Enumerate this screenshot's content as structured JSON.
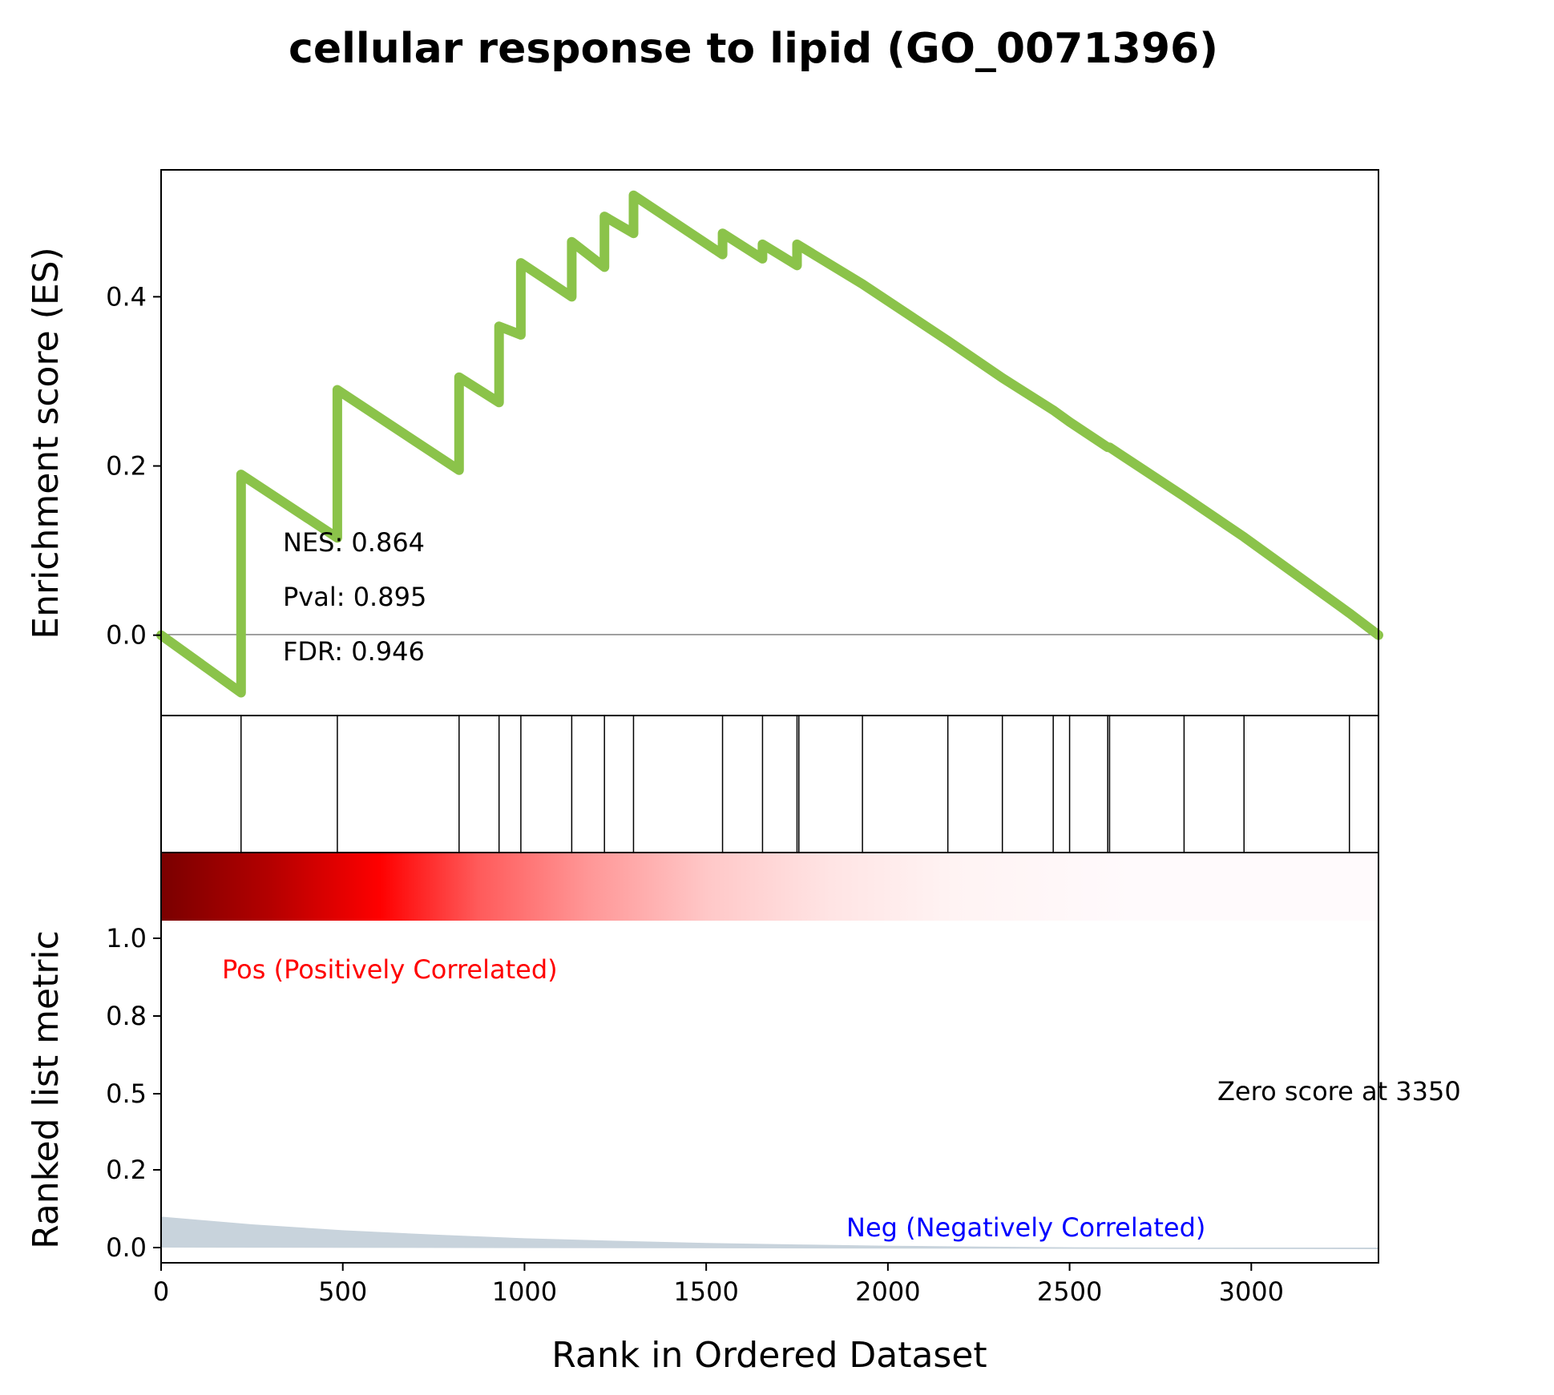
{
  "chart_data": {
    "type": "line",
    "title": "cellular response to lipid (GO_0071396)",
    "xlabel": "Rank in Ordered Dataset",
    "xlim": [
      0,
      3350
    ],
    "x_ticks": [
      "0",
      "500",
      "1000",
      "1500",
      "2000",
      "2500",
      "3000"
    ],
    "es_panel": {
      "ylabel": "Enrichment score (ES)",
      "ylim": [
        -0.095,
        0.55
      ],
      "y_ticks": [
        "0.0",
        "0.2",
        "0.4"
      ],
      "line_color": "#8bc34a",
      "series": [
        {
          "x": [
            0,
            220,
            220,
            485,
            485,
            820,
            820,
            930,
            930,
            990,
            990,
            1130,
            1130,
            1220,
            1220,
            1300,
            1300,
            1545,
            1545,
            1655,
            1655,
            1750,
            1750,
            1930,
            2165,
            2315,
            2455,
            2500,
            2605,
            2610,
            2815,
            2980,
            3270,
            3350
          ],
          "y": [
            0.0,
            -0.068,
            0.19,
            0.115,
            0.29,
            0.195,
            0.305,
            0.275,
            0.365,
            0.355,
            0.44,
            0.4,
            0.465,
            0.435,
            0.495,
            0.475,
            0.52,
            0.45,
            0.475,
            0.445,
            0.462,
            0.437,
            0.462,
            0.415,
            0.348,
            0.304,
            0.266,
            0.252,
            0.222,
            0.222,
            0.164,
            0.116,
            0.026,
            0.0
          ]
        }
      ]
    },
    "hits": [
      220,
      485,
      820,
      930,
      990,
      1130,
      1220,
      1300,
      1545,
      1655,
      1750,
      1755,
      1930,
      2165,
      2315,
      2455,
      2500,
      2605,
      2610,
      2815,
      2980,
      3270
    ],
    "stats": {
      "nes": "NES: 0.864",
      "pval": "Pval: 0.895",
      "fdr": "FDR: 0.946"
    },
    "rank_panel": {
      "ylabel": "Ranked list metric",
      "y_ticks": [
        "0.0",
        "0.2",
        "0.5",
        "0.8",
        "1.0"
      ],
      "pos_label": "Pos (Positively Correlated)",
      "neg_label": "Neg (Negatively Correlated)",
      "zero_label": "Zero score at 3350",
      "pos_color": "#ff0000",
      "neg_color": "#0000ff",
      "fill_color": "#c8d3dc",
      "metric": {
        "x": [
          0,
          250,
          500,
          750,
          1000,
          1250,
          1500,
          1750,
          2000,
          2250,
          2500,
          2750,
          3000,
          3350
        ],
        "y": [
          0.1,
          0.075,
          0.056,
          0.042,
          0.03,
          0.022,
          0.015,
          0.01,
          0.006,
          0.003,
          0.001,
          0.0,
          0.0,
          0.0
        ]
      }
    }
  }
}
